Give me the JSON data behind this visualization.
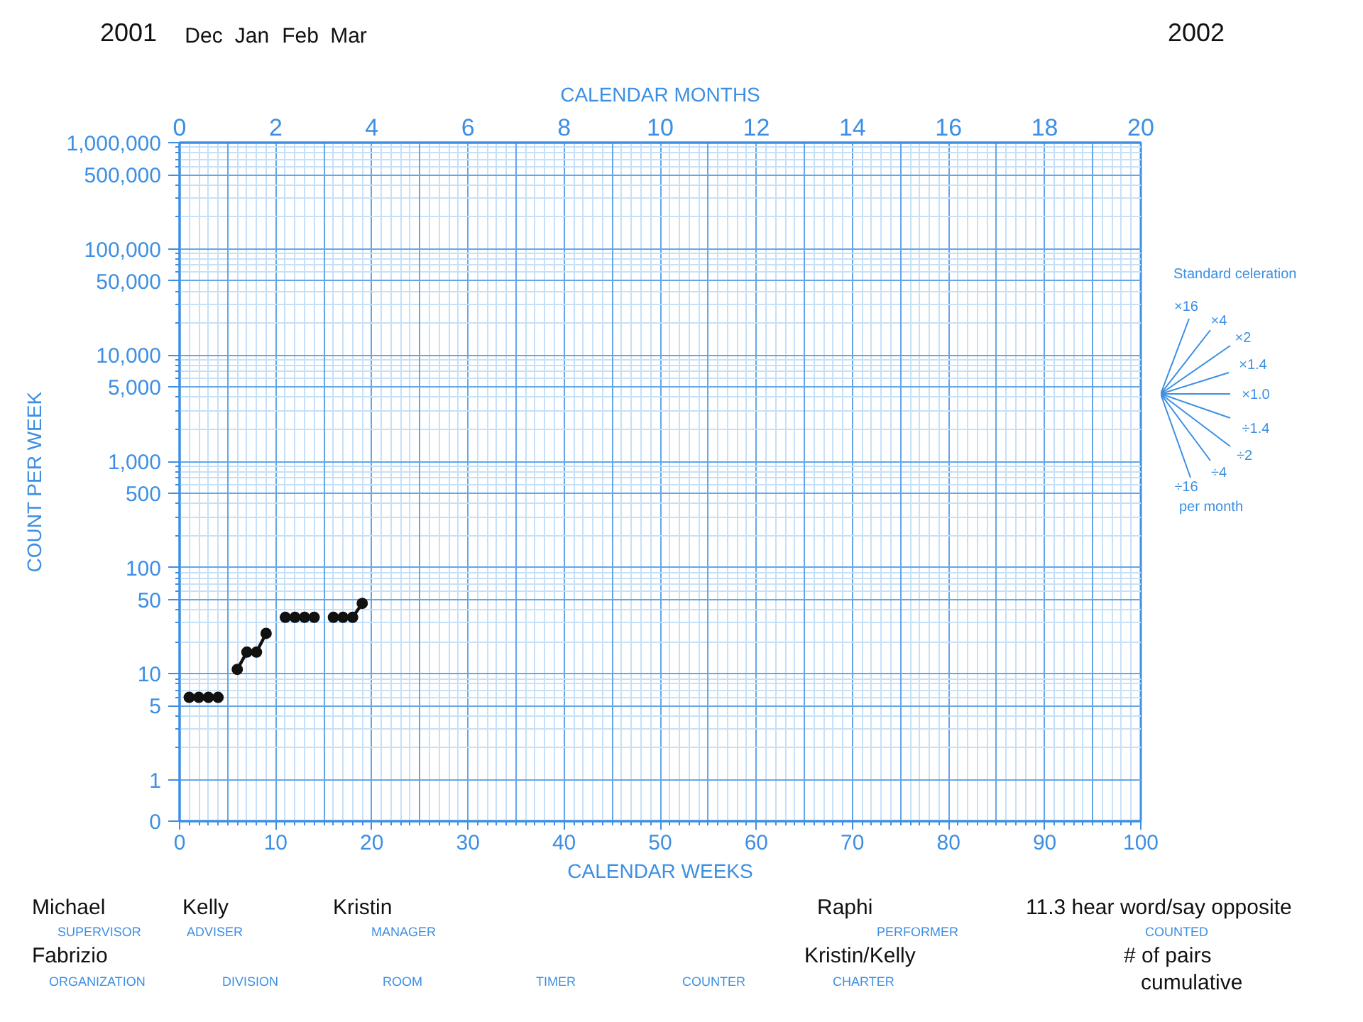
{
  "chart_data": {
    "type": "line",
    "xlabel": "CALENDAR WEEKS",
    "ylabel": "COUNT PER WEEK",
    "x2label": "CALENDAR MONTHS",
    "x": [
      1,
      2,
      3,
      4,
      5,
      6,
      7,
      8,
      9,
      10,
      11,
      12,
      13,
      14,
      15,
      16,
      17,
      18,
      19
    ],
    "series": [
      {
        "color": "#111111",
        "values": [
          6,
          6,
          6,
          6,
          null,
          11,
          16,
          16,
          24,
          null,
          34,
          34,
          34,
          34,
          null,
          34,
          34,
          34,
          46
        ]
      }
    ],
    "xlim": [
      0,
      100
    ],
    "xticks": [
      0,
      {
        "value": 1,
        "label": null
      },
      {
        "value": 2,
        "label": null
      },
      {
        "value": 3,
        "label": null
      },
      {
        "value": 4,
        "label": null
      },
      {
        "value": 5,
        "label": null
      },
      {
        "value": 6,
        "label": null
      },
      {
        "value": 7,
        "label": null
      },
      {
        "value": 8,
        "label": null
      },
      {
        "value": 9,
        "label": null
      },
      10,
      {
        "value": 11,
        "label": null
      },
      {
        "value": 12,
        "label": null
      },
      {
        "value": 13,
        "label": null
      },
      {
        "value": 14,
        "label": null
      },
      {
        "value": 15,
        "label": null
      },
      {
        "value": 16,
        "label": null
      },
      {
        "value": 17,
        "label": null
      },
      {
        "value": 18,
        "label": null
      },
      {
        "value": 19,
        "label": null
      },
      20,
      {
        "value": 21,
        "label": null
      },
      {
        "value": 22,
        "label": null
      },
      {
        "value": 23,
        "label": null
      },
      {
        "value": 24,
        "label": null
      },
      {
        "value": 25,
        "label": null
      },
      {
        "value": 26,
        "label": null
      },
      {
        "value": 27,
        "label": null
      },
      {
        "value": 28,
        "label": null
      },
      {
        "value": 29,
        "label": null
      },
      30,
      {
        "value": 31,
        "label": null
      },
      {
        "value": 32,
        "label": null
      },
      {
        "value": 33,
        "label": null
      },
      {
        "value": 34,
        "label": null
      },
      {
        "value": 35,
        "label": null
      },
      {
        "value": 36,
        "label": null
      },
      {
        "value": 37,
        "label": null
      },
      {
        "value": 38,
        "label": null
      },
      {
        "value": 39,
        "label": null
      },
      40,
      {
        "value": 41,
        "label": null
      },
      {
        "value": 42,
        "label": null
      },
      {
        "value": 43,
        "label": null
      },
      {
        "value": 44,
        "label": null
      },
      {
        "value": 45,
        "label": null
      },
      {
        "value": 46,
        "label": null
      },
      {
        "value": 47,
        "label": null
      },
      {
        "value": 48,
        "label": null
      },
      {
        "value": 49,
        "label": null
      },
      50,
      {
        "value": 51,
        "label": null
      },
      {
        "value": 52,
        "label": null
      },
      {
        "value": 53,
        "label": null
      },
      {
        "value": 54,
        "label": null
      },
      {
        "value": 55,
        "label": null
      },
      {
        "value": 56,
        "label": null
      },
      {
        "value": 57,
        "label": null
      },
      {
        "value": 58,
        "label": null
      },
      {
        "value": 59,
        "label": null
      },
      60,
      {
        "value": 61,
        "label": null
      },
      {
        "value": 62,
        "label": null
      },
      {
        "value": 63,
        "label": null
      },
      {
        "value": 64,
        "label": null
      },
      {
        "value": 65,
        "label": null
      },
      {
        "value": 66,
        "label": null
      },
      {
        "value": 67,
        "label": null
      },
      {
        "value": 68,
        "label": null
      },
      {
        "value": 69,
        "label": null
      },
      70,
      {
        "value": 71,
        "label": null
      },
      {
        "value": 72,
        "label": null
      },
      {
        "value": 73,
        "label": null
      },
      {
        "value": 74,
        "label": null
      },
      {
        "value": 75,
        "label": null
      },
      {
        "value": 76,
        "label": null
      },
      {
        "value": 77,
        "label": null
      },
      {
        "value": 78,
        "label": null
      },
      {
        "value": 79,
        "label": null
      },
      80,
      {
        "value": 81,
        "label": null
      },
      {
        "value": 82,
        "label": null
      },
      {
        "value": 83,
        "label": null
      },
      {
        "value": 84,
        "label": null
      },
      {
        "value": 85,
        "label": null
      },
      {
        "value": 86,
        "label": null
      },
      {
        "value": 87,
        "label": null
      },
      {
        "value": 88,
        "label": null
      },
      {
        "value": 89,
        "label": null
      },
      90,
      {
        "value": 91,
        "label": null
      },
      {
        "value": 92,
        "label": null
      },
      {
        "value": 93,
        "label": null
      },
      {
        "value": 94,
        "label": null
      },
      {
        "value": 95,
        "label": null
      },
      {
        "value": 96,
        "label": null
      },
      {
        "value": 97,
        "label": null
      },
      {
        "value": 98,
        "label": null
      },
      {
        "value": 99,
        "label": null
      },
      100
    ],
    "x2lim": [
      0,
      20
    ],
    "x2ticks": [
      0,
      2,
      4,
      6,
      8,
      10,
      12,
      14,
      16,
      18,
      20
    ],
    "ylim": [
      0.41,
      1000000
    ],
    "yticks": [
      {
        "value": 0.41,
        "label": "0"
      },
      1,
      {
        "value": 2,
        "label": null
      },
      {
        "value": 3,
        "label": null
      },
      {
        "value": 4,
        "label": null
      },
      5,
      {
        "value": 6,
        "label": null
      },
      {
        "value": 7,
        "label": null
      },
      {
        "value": 8,
        "label": null
      },
      {
        "value": 9,
        "label": null
      },
      10,
      {
        "value": 20,
        "label": null
      },
      {
        "value": 30,
        "label": null
      },
      {
        "value": 40,
        "label": null
      },
      50,
      {
        "value": 60,
        "label": null
      },
      {
        "value": 70,
        "label": null
      },
      {
        "value": 80,
        "label": null
      },
      {
        "value": 90,
        "label": null
      },
      100,
      {
        "value": 200,
        "label": null
      },
      {
        "value": 300,
        "label": null
      },
      {
        "value": 400,
        "label": null
      },
      500,
      {
        "value": 600,
        "label": null
      },
      {
        "value": 700,
        "label": null
      },
      {
        "value": 800,
        "label": null
      },
      {
        "value": 900,
        "label": null
      },
      {
        "value": 1000,
        "label": "1,000"
      },
      {
        "value": 2000,
        "label": null
      },
      {
        "value": 3000,
        "label": null
      },
      {
        "value": 4000,
        "label": null
      },
      {
        "value": 5000,
        "label": "5,000"
      },
      {
        "value": 6000,
        "label": null
      },
      {
        "value": 7000,
        "label": null
      },
      {
        "value": 8000,
        "label": null
      },
      {
        "value": 9000,
        "label": null
      },
      {
        "value": 10000,
        "label": "10,000"
      },
      {
        "value": 20000,
        "label": null
      },
      {
        "value": 30000,
        "label": null
      },
      {
        "value": 40000,
        "label": null
      },
      {
        "value": 50000,
        "label": "50,000"
      },
      {
        "value": 60000,
        "label": null
      },
      {
        "value": 70000,
        "label": null
      },
      {
        "value": 80000,
        "label": null
      },
      {
        "value": 90000,
        "label": null
      },
      {
        "value": 100000,
        "label": "100,000"
      },
      {
        "value": 200000,
        "label": null
      },
      {
        "value": 300000,
        "label": null
      },
      {
        "value": 400000,
        "label": null
      },
      {
        "value": 500000,
        "label": "500,000"
      },
      {
        "value": 600000,
        "label": null
      },
      {
        "value": 700000,
        "label": null
      },
      {
        "value": 800000,
        "label": null
      },
      {
        "value": 900000,
        "label": null
      },
      {
        "value": 1000000,
        "label": "1,000,000"
      }
    ],
    "log": true,
    "grid": true,
    "marker": "circle",
    "line_style": "solid",
    "annotations": [
      "2001",
      "Dec",
      "Jan",
      "Feb",
      "Mar",
      "2002",
      "Michael",
      "SUPERVISOR",
      "Kelly",
      "ADVISER",
      "Kristin",
      "MANAGER",
      "Raphi",
      "PERFORMER",
      "11.3 hear word/say opposite",
      "COUNTED",
      "Fabrizio",
      "ORGANIZATION",
      "DIVISION",
      "ROOM",
      "TIMER",
      "COUNTER",
      "Kristin/Kelly",
      "CHARTER",
      "# of pairs",
      "cumulative",
      "Standard celeration",
      "×16",
      "×4",
      "×2",
      "×1.4",
      "×1.0",
      "÷1.4",
      "÷2",
      "÷4",
      "÷16",
      "per month"
    ]
  }
}
